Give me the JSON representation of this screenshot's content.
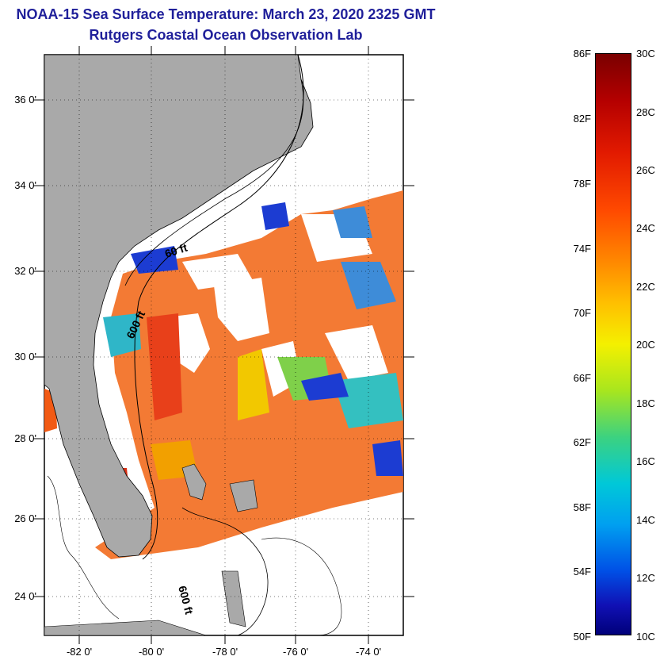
{
  "title": {
    "line1": "NOAA-15 Sea Surface Temperature:  March 23, 2020 2325 GMT",
    "line2": "Rutgers Coastal Ocean Observation Lab"
  },
  "map": {
    "lat_labels": [
      "36 0'",
      "34 0'",
      "32 0'",
      "30 0'",
      "28 0'",
      "26 0'",
      "24 0'"
    ],
    "lon_labels": [
      "-82 0'",
      "-80 0'",
      "-78 0'",
      "-76 0'",
      "-74 0'"
    ],
    "isobath_labels": [
      "60 ft",
      "600 ft",
      "600 ft"
    ]
  },
  "colorbar": {
    "fahrenheit": [
      "86F",
      "82F",
      "78F",
      "74F",
      "70F",
      "66F",
      "62F",
      "58F",
      "54F",
      "50F"
    ],
    "celsius": [
      "30C",
      "28C",
      "26C",
      "24C",
      "22C",
      "20C",
      "18C",
      "16C",
      "14C",
      "12C",
      "10C"
    ]
  },
  "colors": {
    "title": "#1f1f9a",
    "land": "#a9a9a9",
    "warm": "#f05a14",
    "cool": "#1c3cd2"
  }
}
